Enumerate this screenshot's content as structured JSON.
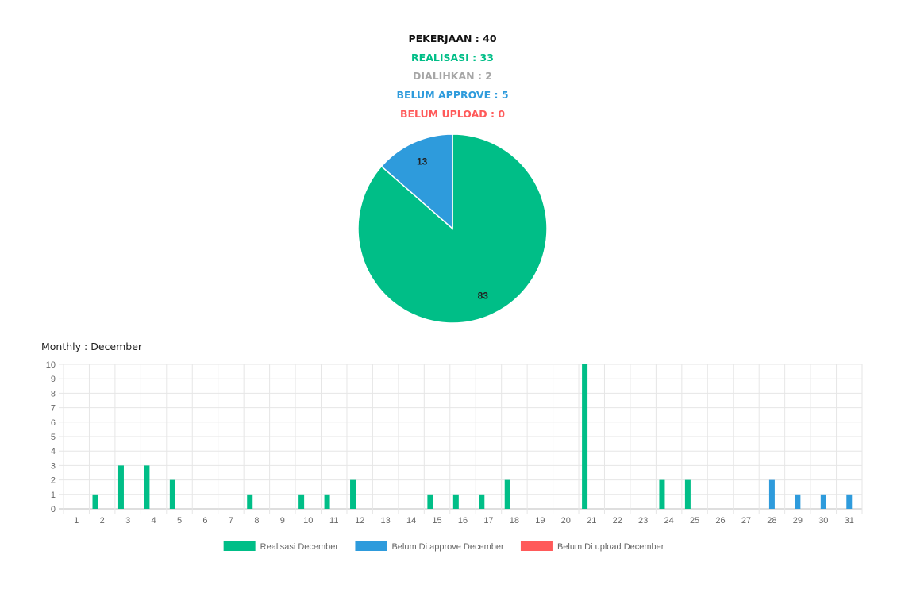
{
  "summary": {
    "pekerjaan": "PEKERJAAN : 40",
    "realisasi": "REALISASI : 33",
    "dialihkan": "DIALIHKAN : 2",
    "belum_approve": "BELUM APPROVE : 5",
    "belum_upload": "BELUM UPLOAD : 0"
  },
  "colors": {
    "realisasi": "#00be87",
    "approve": "#2e9bdc",
    "upload": "#ff5a5a",
    "dialihkan": "#a6a6a6",
    "pekerjaan": "#111111"
  },
  "monthly_title": "Monthly : December",
  "chart_data": [
    {
      "type": "pie",
      "slices": [
        {
          "label": "Realisasi",
          "value": 83,
          "color": "#00be87"
        },
        {
          "label": "Belum Approve",
          "value": 13,
          "color": "#2e9bdc"
        }
      ],
      "data_labels": [
        "83",
        "13"
      ]
    },
    {
      "type": "bar",
      "title": "Monthly : December",
      "categories": [
        "1",
        "2",
        "3",
        "4",
        "5",
        "6",
        "7",
        "8",
        "9",
        "10",
        "11",
        "12",
        "13",
        "14",
        "15",
        "16",
        "17",
        "18",
        "19",
        "20",
        "21",
        "22",
        "23",
        "24",
        "25",
        "26",
        "27",
        "28",
        "29",
        "30",
        "31"
      ],
      "series": [
        {
          "name": "Realisasi December",
          "color": "#00be87",
          "values": [
            0,
            1,
            3,
            3,
            2,
            0,
            0,
            1,
            0,
            1,
            1,
            2,
            0,
            0,
            1,
            1,
            1,
            2,
            0,
            0,
            10,
            0,
            0,
            2,
            2,
            0,
            0,
            0,
            0,
            0,
            0
          ]
        },
        {
          "name": "Belum Di approve December",
          "color": "#2e9bdc",
          "values": [
            0,
            0,
            0,
            0,
            0,
            0,
            0,
            0,
            0,
            0,
            0,
            0,
            0,
            0,
            0,
            0,
            0,
            0,
            0,
            0,
            0,
            0,
            0,
            0,
            0,
            0,
            0,
            2,
            1,
            1,
            1
          ]
        },
        {
          "name": "Belum Di upload December",
          "color": "#ff5a5a",
          "values": [
            0,
            0,
            0,
            0,
            0,
            0,
            0,
            0,
            0,
            0,
            0,
            0,
            0,
            0,
            0,
            0,
            0,
            0,
            0,
            0,
            0,
            0,
            0,
            0,
            0,
            0,
            0,
            0,
            0,
            0,
            0
          ]
        }
      ],
      "ylim": [
        0,
        10
      ],
      "y_ticks": [
        "0",
        "1",
        "2",
        "3",
        "4",
        "5",
        "6",
        "7",
        "8",
        "9",
        "10"
      ],
      "grid": true,
      "legend_position": "bottom"
    }
  ]
}
